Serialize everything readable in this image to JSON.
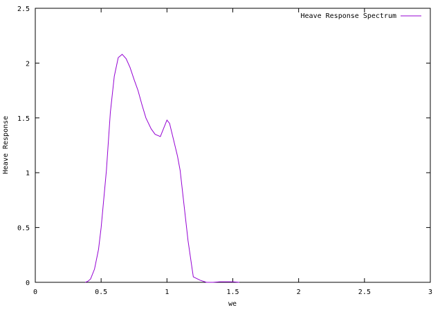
{
  "chart_data": {
    "type": "line",
    "title": "",
    "xlabel": "we",
    "ylabel": "Heave Response",
    "xlim": [
      0,
      3
    ],
    "ylim": [
      0,
      2.5
    ],
    "x_ticks": [
      {
        "value": 0,
        "label": "0"
      },
      {
        "value": 0.5,
        "label": "0.5"
      },
      {
        "value": 1,
        "label": "1"
      },
      {
        "value": 1.5,
        "label": "1.5"
      },
      {
        "value": 2,
        "label": "2"
      },
      {
        "value": 2.5,
        "label": "2.5"
      },
      {
        "value": 3,
        "label": "3"
      }
    ],
    "y_ticks": [
      {
        "value": 0,
        "label": "0"
      },
      {
        "value": 0.5,
        "label": "0.5"
      },
      {
        "value": 1,
        "label": "1"
      },
      {
        "value": 1.5,
        "label": "1.5"
      },
      {
        "value": 2,
        "label": "2"
      },
      {
        "value": 2.5,
        "label": "2.5"
      }
    ],
    "grid": false,
    "legend_position": "top-right",
    "series": [
      {
        "name": "Heave Response Spectrum",
        "color": "#9400d3",
        "x": [
          0.38,
          0.4,
          0.42,
          0.45,
          0.48,
          0.5,
          0.54,
          0.57,
          0.6,
          0.63,
          0.66,
          0.69,
          0.72,
          0.75,
          0.78,
          0.81,
          0.84,
          0.88,
          0.91,
          0.95,
          1.0,
          1.02,
          1.05,
          1.08,
          1.1,
          1.13,
          1.16,
          1.2,
          1.25,
          1.3,
          1.35,
          1.4,
          1.5,
          1.55
        ],
        "values": [
          0.0,
          0.01,
          0.03,
          0.12,
          0.3,
          0.5,
          1.02,
          1.55,
          1.88,
          2.05,
          2.08,
          2.04,
          1.96,
          1.85,
          1.75,
          1.62,
          1.5,
          1.4,
          1.35,
          1.33,
          1.48,
          1.45,
          1.3,
          1.15,
          1.02,
          0.7,
          0.38,
          0.05,
          0.02,
          0.0,
          0.0,
          0.005,
          0.005,
          0.0
        ]
      }
    ]
  }
}
